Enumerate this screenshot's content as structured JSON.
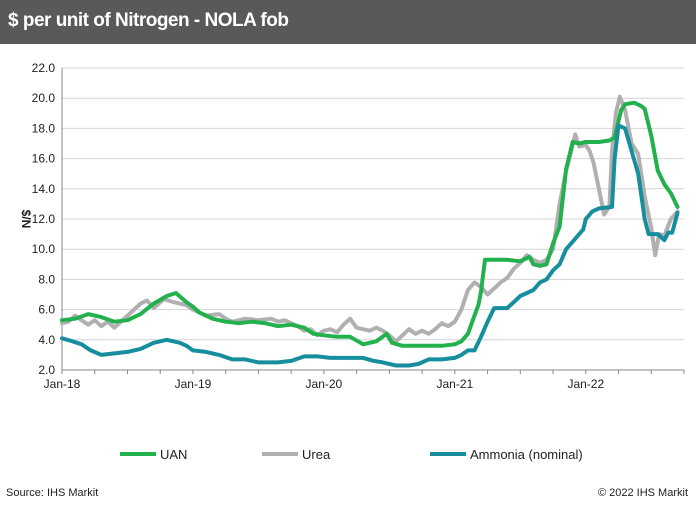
{
  "header": {
    "title": "$ per unit of Nitrogen - NOLA fob"
  },
  "footer": {
    "source": "Source: IHS Markit",
    "copyright": "© 2022 IHS Markit"
  },
  "colors": {
    "uan": "#22b14c",
    "urea": "#b0b0b0",
    "ammonia": "#178e9e",
    "title_bg": "#595959"
  },
  "chart_data": {
    "type": "line",
    "title": "$ per unit of Nitrogen - NOLA fob",
    "xlabel": "",
    "ylabel": "$/N",
    "ylim": [
      2.0,
      22.0
    ],
    "xlim": [
      2018.0,
      2022.75
    ],
    "y_ticks": [
      "2.0",
      "4.0",
      "6.0",
      "8.0",
      "10.0",
      "12.0",
      "14.0",
      "16.0",
      "18.0",
      "20.0",
      "22.0"
    ],
    "x_ticks": [
      {
        "label": "Jan-18",
        "x": 2018.0
      },
      {
        "label": "Jan-19",
        "x": 2019.0
      },
      {
        "label": "Jan-20",
        "x": 2020.0
      },
      {
        "label": "Jan-21",
        "x": 2021.0
      },
      {
        "label": "Jan-22",
        "x": 2022.0
      }
    ],
    "grid": "horizontal",
    "legend": "bottom",
    "series": [
      {
        "name": "UAN",
        "color": "#22b14c",
        "points": [
          [
            2018.0,
            5.3
          ],
          [
            2018.1,
            5.4
          ],
          [
            2018.2,
            5.7
          ],
          [
            2018.3,
            5.5
          ],
          [
            2018.4,
            5.2
          ],
          [
            2018.5,
            5.3
          ],
          [
            2018.6,
            5.7
          ],
          [
            2018.7,
            6.4
          ],
          [
            2018.8,
            6.9
          ],
          [
            2018.87,
            7.1
          ],
          [
            2018.95,
            6.5
          ],
          [
            2019.0,
            6.2
          ],
          [
            2019.05,
            5.8
          ],
          [
            2019.15,
            5.4
          ],
          [
            2019.25,
            5.2
          ],
          [
            2019.35,
            5.1
          ],
          [
            2019.45,
            5.2
          ],
          [
            2019.55,
            5.1
          ],
          [
            2019.65,
            4.9
          ],
          [
            2019.75,
            5.0
          ],
          [
            2019.85,
            4.8
          ],
          [
            2019.92,
            4.4
          ],
          [
            2020.0,
            4.3
          ],
          [
            2020.1,
            4.2
          ],
          [
            2020.2,
            4.2
          ],
          [
            2020.3,
            3.7
          ],
          [
            2020.4,
            3.9
          ],
          [
            2020.48,
            4.4
          ],
          [
            2020.52,
            3.8
          ],
          [
            2020.6,
            3.6
          ],
          [
            2020.7,
            3.6
          ],
          [
            2020.8,
            3.6
          ],
          [
            2020.9,
            3.6
          ],
          [
            2021.0,
            3.7
          ],
          [
            2021.05,
            3.9
          ],
          [
            2021.1,
            4.4
          ],
          [
            2021.15,
            5.6
          ],
          [
            2021.18,
            6.3
          ],
          [
            2021.2,
            7.2
          ],
          [
            2021.23,
            9.3
          ],
          [
            2021.3,
            9.3
          ],
          [
            2021.4,
            9.3
          ],
          [
            2021.5,
            9.2
          ],
          [
            2021.57,
            9.5
          ],
          [
            2021.6,
            9.0
          ],
          [
            2021.65,
            8.9
          ],
          [
            2021.7,
            9.0
          ],
          [
            2021.75,
            10.4
          ],
          [
            2021.8,
            11.5
          ],
          [
            2021.85,
            15.3
          ],
          [
            2021.9,
            17.1
          ],
          [
            2021.95,
            17.0
          ],
          [
            2022.0,
            17.1
          ],
          [
            2022.1,
            17.1
          ],
          [
            2022.18,
            17.2
          ],
          [
            2022.22,
            17.4
          ],
          [
            2022.27,
            19.2
          ],
          [
            2022.3,
            19.6
          ],
          [
            2022.37,
            19.7
          ],
          [
            2022.42,
            19.5
          ],
          [
            2022.45,
            19.3
          ],
          [
            2022.5,
            17.5
          ],
          [
            2022.55,
            15.2
          ],
          [
            2022.6,
            14.3
          ],
          [
            2022.65,
            13.7
          ],
          [
            2022.7,
            12.8
          ]
        ]
      },
      {
        "name": "Urea",
        "color": "#b0b0b0",
        "points": [
          [
            2018.0,
            5.1
          ],
          [
            2018.05,
            5.2
          ],
          [
            2018.1,
            5.6
          ],
          [
            2018.15,
            5.3
          ],
          [
            2018.2,
            5.0
          ],
          [
            2018.25,
            5.3
          ],
          [
            2018.3,
            4.9
          ],
          [
            2018.35,
            5.2
          ],
          [
            2018.4,
            4.8
          ],
          [
            2018.5,
            5.6
          ],
          [
            2018.6,
            6.4
          ],
          [
            2018.65,
            6.6
          ],
          [
            2018.7,
            6.1
          ],
          [
            2018.78,
            6.7
          ],
          [
            2018.85,
            6.5
          ],
          [
            2018.9,
            6.4
          ],
          [
            2018.95,
            6.3
          ],
          [
            2019.0,
            6.0
          ],
          [
            2019.1,
            5.6
          ],
          [
            2019.2,
            5.7
          ],
          [
            2019.25,
            5.4
          ],
          [
            2019.3,
            5.2
          ],
          [
            2019.4,
            5.4
          ],
          [
            2019.5,
            5.3
          ],
          [
            2019.6,
            5.4
          ],
          [
            2019.65,
            5.2
          ],
          [
            2019.7,
            5.3
          ],
          [
            2019.75,
            5.1
          ],
          [
            2019.8,
            4.9
          ],
          [
            2019.85,
            4.6
          ],
          [
            2019.9,
            4.7
          ],
          [
            2019.95,
            4.3
          ],
          [
            2020.0,
            4.6
          ],
          [
            2020.05,
            4.7
          ],
          [
            2020.1,
            4.5
          ],
          [
            2020.15,
            5.0
          ],
          [
            2020.2,
            5.4
          ],
          [
            2020.25,
            4.8
          ],
          [
            2020.3,
            4.7
          ],
          [
            2020.35,
            4.6
          ],
          [
            2020.4,
            4.8
          ],
          [
            2020.45,
            4.6
          ],
          [
            2020.5,
            4.3
          ],
          [
            2020.55,
            3.9
          ],
          [
            2020.6,
            4.3
          ],
          [
            2020.65,
            4.7
          ],
          [
            2020.7,
            4.4
          ],
          [
            2020.75,
            4.6
          ],
          [
            2020.8,
            4.4
          ],
          [
            2020.85,
            4.7
          ],
          [
            2020.9,
            5.1
          ],
          [
            2020.95,
            4.9
          ],
          [
            2021.0,
            5.2
          ],
          [
            2021.05,
            6.0
          ],
          [
            2021.1,
            7.3
          ],
          [
            2021.15,
            7.8
          ],
          [
            2021.2,
            7.5
          ],
          [
            2021.25,
            7.0
          ],
          [
            2021.3,
            7.4
          ],
          [
            2021.35,
            7.8
          ],
          [
            2021.4,
            8.1
          ],
          [
            2021.45,
            8.7
          ],
          [
            2021.5,
            9.1
          ],
          [
            2021.55,
            9.6
          ],
          [
            2021.6,
            9.3
          ],
          [
            2021.65,
            9.1
          ],
          [
            2021.7,
            9.3
          ],
          [
            2021.75,
            10.0
          ],
          [
            2021.8,
            13.0
          ],
          [
            2021.85,
            15.2
          ],
          [
            2021.88,
            16.2
          ],
          [
            2021.92,
            17.6
          ],
          [
            2021.95,
            16.8
          ],
          [
            2022.0,
            16.9
          ],
          [
            2022.03,
            16.5
          ],
          [
            2022.06,
            15.7
          ],
          [
            2022.1,
            14.0
          ],
          [
            2022.14,
            12.3
          ],
          [
            2022.18,
            12.8
          ],
          [
            2022.2,
            16.5
          ],
          [
            2022.23,
            19.0
          ],
          [
            2022.26,
            20.1
          ],
          [
            2022.3,
            19.2
          ],
          [
            2022.35,
            17.0
          ],
          [
            2022.4,
            16.3
          ],
          [
            2022.45,
            13.5
          ],
          [
            2022.5,
            11.4
          ],
          [
            2022.53,
            9.6
          ],
          [
            2022.56,
            11.0
          ],
          [
            2022.6,
            10.9
          ],
          [
            2022.65,
            12.0
          ],
          [
            2022.7,
            12.5
          ]
        ]
      },
      {
        "name": "Ammonia (nominal)",
        "color": "#178e9e",
        "points": [
          [
            2018.0,
            4.1
          ],
          [
            2018.08,
            3.9
          ],
          [
            2018.15,
            3.7
          ],
          [
            2018.22,
            3.3
          ],
          [
            2018.3,
            3.0
          ],
          [
            2018.4,
            3.1
          ],
          [
            2018.5,
            3.2
          ],
          [
            2018.6,
            3.4
          ],
          [
            2018.7,
            3.8
          ],
          [
            2018.8,
            4.0
          ],
          [
            2018.9,
            3.8
          ],
          [
            2018.95,
            3.6
          ],
          [
            2019.0,
            3.3
          ],
          [
            2019.1,
            3.2
          ],
          [
            2019.2,
            3.0
          ],
          [
            2019.3,
            2.7
          ],
          [
            2019.4,
            2.7
          ],
          [
            2019.5,
            2.5
          ],
          [
            2019.65,
            2.5
          ],
          [
            2019.75,
            2.6
          ],
          [
            2019.85,
            2.9
          ],
          [
            2019.95,
            2.9
          ],
          [
            2020.05,
            2.8
          ],
          [
            2020.2,
            2.8
          ],
          [
            2020.3,
            2.8
          ],
          [
            2020.38,
            2.6
          ],
          [
            2020.45,
            2.5
          ],
          [
            2020.55,
            2.3
          ],
          [
            2020.65,
            2.3
          ],
          [
            2020.72,
            2.4
          ],
          [
            2020.8,
            2.7
          ],
          [
            2020.9,
            2.7
          ],
          [
            2021.0,
            2.8
          ],
          [
            2021.05,
            3.0
          ],
          [
            2021.1,
            3.3
          ],
          [
            2021.15,
            3.3
          ],
          [
            2021.2,
            4.2
          ],
          [
            2021.25,
            5.2
          ],
          [
            2021.3,
            6.1
          ],
          [
            2021.4,
            6.1
          ],
          [
            2021.45,
            6.5
          ],
          [
            2021.5,
            6.9
          ],
          [
            2021.55,
            7.1
          ],
          [
            2021.6,
            7.3
          ],
          [
            2021.65,
            7.8
          ],
          [
            2021.7,
            8.0
          ],
          [
            2021.75,
            8.6
          ],
          [
            2021.8,
            9.0
          ],
          [
            2021.85,
            10.0
          ],
          [
            2021.9,
            10.5
          ],
          [
            2021.95,
            11.0
          ],
          [
            2021.98,
            11.3
          ],
          [
            2022.0,
            12.0
          ],
          [
            2022.05,
            12.5
          ],
          [
            2022.1,
            12.7
          ],
          [
            2022.2,
            12.8
          ],
          [
            2022.22,
            16.0
          ],
          [
            2022.25,
            18.2
          ],
          [
            2022.3,
            18.0
          ],
          [
            2022.35,
            16.5
          ],
          [
            2022.4,
            15.0
          ],
          [
            2022.45,
            12.0
          ],
          [
            2022.48,
            11.0
          ],
          [
            2022.55,
            11.0
          ],
          [
            2022.6,
            10.6
          ],
          [
            2022.63,
            11.1
          ],
          [
            2022.66,
            11.1
          ],
          [
            2022.7,
            12.4
          ]
        ]
      }
    ]
  }
}
